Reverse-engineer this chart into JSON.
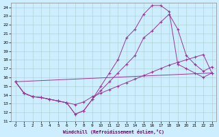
{
  "xlabel": "Windchill (Refroidissement éolien,°C)",
  "bg_color": "#cceeff",
  "grid_color": "#aacccc",
  "line_color": "#993399",
  "xlim": [
    -0.5,
    23.5
  ],
  "ylim": [
    11,
    24.5
  ],
  "xticks": [
    0,
    1,
    2,
    3,
    4,
    5,
    6,
    7,
    8,
    9,
    10,
    11,
    12,
    13,
    14,
    15,
    16,
    17,
    18,
    19,
    20,
    21,
    22,
    23
  ],
  "yticks": [
    11,
    12,
    13,
    14,
    15,
    16,
    17,
    18,
    19,
    20,
    21,
    22,
    23,
    24
  ],
  "lines": [
    {
      "x": [
        0,
        1,
        2,
        3,
        4,
        5,
        6,
        7,
        8,
        9,
        10,
        11,
        12,
        13,
        14,
        15,
        16,
        17,
        18,
        19,
        20,
        21,
        22,
        23
      ],
      "y": [
        15.5,
        14.2,
        13.8,
        13.7,
        13.5,
        13.3,
        13.1,
        12.9,
        13.2,
        13.8,
        14.2,
        14.6,
        15.0,
        15.4,
        15.8,
        16.2,
        16.6,
        17.0,
        17.4,
        17.7,
        18.0,
        18.3,
        18.6,
        16.5
      ],
      "marker": "+"
    },
    {
      "x": [
        0,
        1,
        2,
        3,
        4,
        5,
        6,
        7,
        8,
        9,
        10,
        11,
        12,
        13,
        14,
        15,
        16,
        17,
        18,
        19,
        20,
        21,
        22,
        23
      ],
      "y": [
        15.5,
        14.2,
        13.8,
        13.7,
        13.5,
        13.3,
        13.1,
        11.8,
        12.2,
        13.5,
        15.0,
        16.5,
        18.0,
        20.5,
        21.5,
        23.2,
        24.2,
        24.2,
        23.5,
        17.5,
        17.0,
        16.5,
        16.0,
        16.5
      ],
      "marker": "+"
    },
    {
      "x": [
        0,
        1,
        2,
        3,
        4,
        5,
        6,
        7,
        8,
        9,
        10,
        11,
        12,
        13,
        14,
        15,
        16,
        17,
        18,
        19,
        20,
        21,
        22,
        23
      ],
      "y": [
        15.5,
        14.2,
        13.8,
        13.7,
        13.5,
        13.3,
        13.1,
        11.8,
        12.2,
        13.5,
        14.5,
        15.5,
        16.5,
        17.5,
        18.5,
        20.5,
        21.3,
        22.3,
        23.2,
        21.5,
        18.5,
        17.5,
        16.7,
        17.2
      ],
      "marker": "+"
    },
    {
      "x": [
        0,
        23
      ],
      "y": [
        15.5,
        16.5
      ],
      "marker": null
    }
  ]
}
